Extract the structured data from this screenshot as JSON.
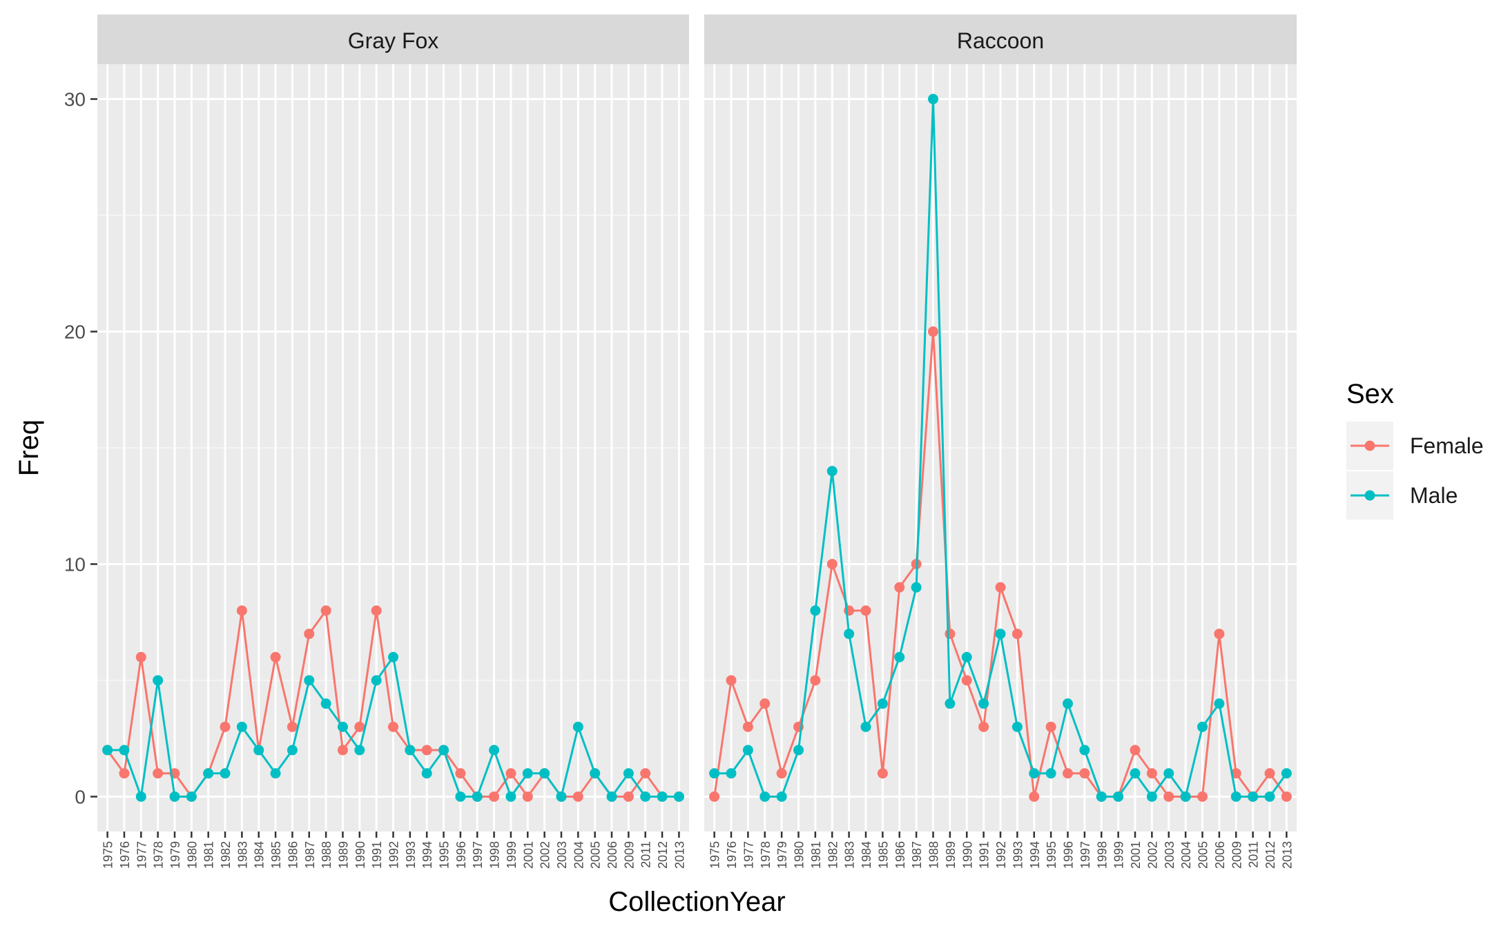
{
  "chart_data": {
    "type": "line",
    "xlabel": "CollectionYear",
    "ylabel": "Freq",
    "ylim": [
      -1.5,
      31.5
    ],
    "yticks": [
      0,
      10,
      20,
      30
    ],
    "legend": {
      "title": "Sex",
      "position": "right",
      "entries": [
        {
          "name": "Female",
          "color": "#F8766D"
        },
        {
          "name": "Male",
          "color": "#00BFC4"
        }
      ]
    },
    "categories": [
      "1975",
      "1976",
      "1977",
      "1978",
      "1979",
      "1980",
      "1981",
      "1982",
      "1983",
      "1984",
      "1985",
      "1986",
      "1987",
      "1988",
      "1989",
      "1990",
      "1991",
      "1992",
      "1993",
      "1994",
      "1995",
      "1996",
      "1997",
      "1998",
      "1999",
      "2001",
      "2002",
      "2003",
      "2004",
      "2005",
      "2006",
      "2009",
      "2011",
      "2012",
      "2013"
    ],
    "panels": [
      {
        "title": "Gray Fox",
        "categories": [
          "1975",
          "1976",
          "1977",
          "1978",
          "1979",
          "1980",
          "1981",
          "1982",
          "1983",
          "1984",
          "1985",
          "1986",
          "1987",
          "1988",
          "1989",
          "1990",
          "1991",
          "1992",
          "1993",
          "1994",
          "1995",
          "1996",
          "1997",
          "1998",
          "1999",
          "2001",
          "2002",
          "2003",
          "2004",
          "2005",
          "2006",
          "2009",
          "2011",
          "2012",
          "2013"
        ],
        "series": [
          {
            "name": "Female",
            "color": "#F8766D",
            "values": [
              2,
              1,
              6,
              1,
              1,
              0,
              1,
              3,
              8,
              2,
              6,
              3,
              7,
              8,
              2,
              3,
              8,
              3,
              2,
              2,
              2,
              1,
              0,
              0,
              1,
              0,
              1,
              0,
              0,
              1,
              0,
              0,
              1,
              0,
              0
            ]
          },
          {
            "name": "Male",
            "color": "#00BFC4",
            "values": [
              2,
              2,
              0,
              5,
              0,
              0,
              1,
              1,
              3,
              2,
              1,
              2,
              5,
              4,
              3,
              2,
              5,
              6,
              2,
              1,
              2,
              0,
              0,
              2,
              0,
              1,
              1,
              0,
              3,
              1,
              0,
              1,
              0,
              0,
              0
            ]
          }
        ]
      },
      {
        "title": "Raccoon",
        "categories": [
          "1975",
          "1976",
          "1977",
          "1978",
          "1979",
          "1980",
          "1981",
          "1982",
          "1983",
          "1984",
          "1985",
          "1986",
          "1987",
          "1988",
          "1989",
          "1990",
          "1991",
          "1992",
          "1993",
          "1994",
          "1995",
          "1996",
          "1997",
          "1998",
          "1999",
          "2001",
          "2002",
          "2003",
          "2004",
          "2005",
          "2006",
          "2009",
          "2011",
          "2012",
          "2013"
        ],
        "series": [
          {
            "name": "Female",
            "color": "#F8766D",
            "values": [
              0,
              5,
              3,
              4,
              1,
              3,
              5,
              10,
              8,
              8,
              1,
              9,
              10,
              20,
              7,
              5,
              3,
              9,
              7,
              0,
              3,
              1,
              1,
              0,
              0,
              2,
              1,
              0,
              0,
              0,
              7,
              1,
              0,
              1,
              0
            ]
          },
          {
            "name": "Male",
            "color": "#00BFC4",
            "values": [
              1,
              1,
              2,
              0,
              0,
              2,
              8,
              14,
              7,
              3,
              4,
              6,
              9,
              30,
              4,
              6,
              4,
              7,
              3,
              1,
              1,
              4,
              2,
              0,
              0,
              1,
              0,
              1,
              0,
              3,
              4,
              0,
              0,
              0,
              1
            ]
          }
        ]
      }
    ]
  }
}
